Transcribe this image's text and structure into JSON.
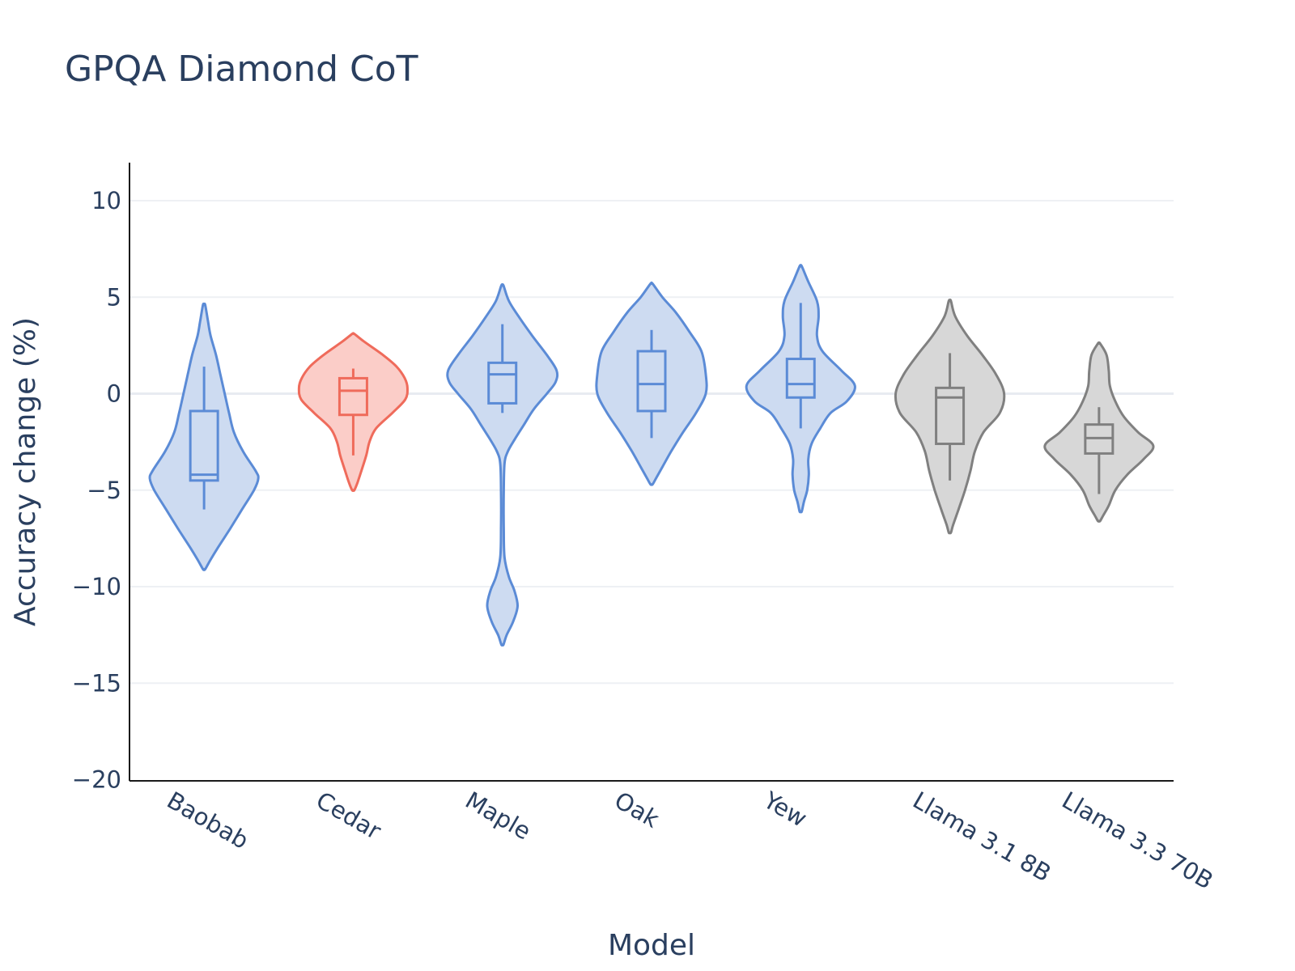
{
  "chart_data": {
    "type": "violin",
    "title": "GPQA Diamond CoT",
    "xlabel": "Model",
    "ylabel": "Accuracy change (%)",
    "ylim": [
      -20,
      12
    ],
    "yticks": [
      10,
      5,
      0,
      -5,
      -10,
      -15,
      -20
    ],
    "ytick_labels": [
      "10",
      "5",
      "0",
      "−5",
      "−10",
      "−15",
      "−20"
    ],
    "grid": true,
    "categories": [
      "Baobab",
      "Cedar",
      "Maple",
      "Oak",
      "Yew",
      "Llama 3.1 8B",
      "Llama 3.3 70B"
    ],
    "series": [
      {
        "name": "Baobab",
        "color": "#5b8bd6",
        "fill": "#cddbf1",
        "range": [
          -9.1,
          4.6
        ],
        "box": {
          "q1": -4.5,
          "median": -4.2,
          "q3": -0.9,
          "whisker_low": -6.0,
          "whisker_high": 1.4
        },
        "density": [
          [
            4.6,
            0.02
          ],
          [
            3.8,
            0.07
          ],
          [
            3.0,
            0.12
          ],
          [
            2.0,
            0.22
          ],
          [
            1.0,
            0.3
          ],
          [
            0.0,
            0.38
          ],
          [
            -1.0,
            0.46
          ],
          [
            -2.0,
            0.55
          ],
          [
            -3.0,
            0.72
          ],
          [
            -4.0,
            0.95
          ],
          [
            -4.4,
            1.0
          ],
          [
            -5.0,
            0.92
          ],
          [
            -6.0,
            0.7
          ],
          [
            -7.0,
            0.48
          ],
          [
            -8.0,
            0.25
          ],
          [
            -8.6,
            0.12
          ],
          [
            -9.1,
            0.02
          ]
        ]
      },
      {
        "name": "Cedar",
        "color": "#ef6b5b",
        "fill": "#fbcdc8",
        "range": [
          -5.0,
          3.1
        ],
        "box": {
          "q1": -1.1,
          "median": 0.15,
          "q3": 0.8,
          "whisker_low": -3.2,
          "whisker_high": 1.3
        },
        "density": [
          [
            3.1,
            0.02
          ],
          [
            2.7,
            0.2
          ],
          [
            2.0,
            0.55
          ],
          [
            1.4,
            0.8
          ],
          [
            0.8,
            0.95
          ],
          [
            0.3,
            1.0
          ],
          [
            -0.3,
            0.96
          ],
          [
            -1.0,
            0.72
          ],
          [
            -1.8,
            0.42
          ],
          [
            -2.5,
            0.3
          ],
          [
            -3.2,
            0.24
          ],
          [
            -4.0,
            0.15
          ],
          [
            -4.6,
            0.08
          ],
          [
            -5.0,
            0.02
          ]
        ]
      },
      {
        "name": "Maple",
        "color": "#5b8bd6",
        "fill": "#cddbf1",
        "range": [
          -13.0,
          5.6
        ],
        "box": {
          "q1": -0.5,
          "median": 1.0,
          "q3": 1.6,
          "whisker_low": -1.0,
          "whisker_high": 3.6
        },
        "density": [
          [
            5.6,
            0.02
          ],
          [
            4.8,
            0.12
          ],
          [
            4.0,
            0.3
          ],
          [
            3.0,
            0.55
          ],
          [
            2.0,
            0.82
          ],
          [
            1.2,
            1.0
          ],
          [
            0.6,
            0.98
          ],
          [
            0.0,
            0.82
          ],
          [
            -0.8,
            0.58
          ],
          [
            -1.6,
            0.4
          ],
          [
            -2.4,
            0.22
          ],
          [
            -3.0,
            0.1
          ],
          [
            -3.6,
            0.04
          ],
          [
            -5.0,
            0.025
          ],
          [
            -7.0,
            0.025
          ],
          [
            -8.5,
            0.04
          ],
          [
            -9.5,
            0.12
          ],
          [
            -10.2,
            0.22
          ],
          [
            -11.0,
            0.28
          ],
          [
            -11.8,
            0.2
          ],
          [
            -12.5,
            0.08
          ],
          [
            -13.0,
            0.02
          ]
        ]
      },
      {
        "name": "Oak",
        "color": "#5b8bd6",
        "fill": "#cddbf1",
        "range": [
          -4.7,
          5.7
        ],
        "box": {
          "q1": -0.9,
          "median": 0.5,
          "q3": 2.2,
          "whisker_low": -2.3,
          "whisker_high": 3.3
        },
        "density": [
          [
            5.7,
            0.02
          ],
          [
            5.0,
            0.2
          ],
          [
            4.2,
            0.45
          ],
          [
            3.2,
            0.7
          ],
          [
            2.2,
            0.92
          ],
          [
            1.0,
            1.0
          ],
          [
            0.0,
            1.0
          ],
          [
            -1.0,
            0.82
          ],
          [
            -2.0,
            0.58
          ],
          [
            -3.0,
            0.36
          ],
          [
            -3.8,
            0.2
          ],
          [
            -4.4,
            0.08
          ],
          [
            -4.7,
            0.02
          ]
        ]
      },
      {
        "name": "Yew",
        "color": "#5b8bd6",
        "fill": "#cddbf1",
        "range": [
          -6.1,
          6.6
        ],
        "box": {
          "q1": -0.2,
          "median": 0.5,
          "q3": 1.8,
          "whisker_low": -1.8,
          "whisker_high": 4.7
        },
        "density": [
          [
            6.6,
            0.02
          ],
          [
            5.8,
            0.14
          ],
          [
            4.8,
            0.3
          ],
          [
            4.0,
            0.33
          ],
          [
            3.0,
            0.3
          ],
          [
            2.2,
            0.4
          ],
          [
            1.2,
            0.75
          ],
          [
            0.4,
            1.0
          ],
          [
            -0.4,
            0.85
          ],
          [
            -1.0,
            0.55
          ],
          [
            -1.8,
            0.36
          ],
          [
            -2.6,
            0.2
          ],
          [
            -3.4,
            0.14
          ],
          [
            -4.2,
            0.15
          ],
          [
            -5.0,
            0.12
          ],
          [
            -5.6,
            0.06
          ],
          [
            -6.1,
            0.02
          ]
        ]
      },
      {
        "name": "Llama 3.1 8B",
        "color": "#808080",
        "fill": "#d7d7d7",
        "range": [
          -7.2,
          4.8
        ],
        "box": {
          "q1": -2.6,
          "median": -0.2,
          "q3": 0.3,
          "whisker_low": -4.5,
          "whisker_high": 2.1
        },
        "density": [
          [
            4.8,
            0.02
          ],
          [
            4.0,
            0.1
          ],
          [
            3.0,
            0.32
          ],
          [
            2.0,
            0.6
          ],
          [
            1.0,
            0.85
          ],
          [
            0.0,
            1.0
          ],
          [
            -1.0,
            0.92
          ],
          [
            -2.0,
            0.62
          ],
          [
            -3.0,
            0.46
          ],
          [
            -4.0,
            0.38
          ],
          [
            -5.0,
            0.28
          ],
          [
            -6.0,
            0.16
          ],
          [
            -6.8,
            0.06
          ],
          [
            -7.2,
            0.02
          ]
        ]
      },
      {
        "name": "Llama 3.3 70B",
        "color": "#808080",
        "fill": "#d7d7d7",
        "range": [
          -6.6,
          2.6
        ],
        "box": {
          "q1": -3.1,
          "median": -2.3,
          "q3": -1.6,
          "whisker_low": -5.2,
          "whisker_high": -0.7
        },
        "density": [
          [
            2.6,
            0.02
          ],
          [
            2.0,
            0.14
          ],
          [
            1.2,
            0.18
          ],
          [
            0.4,
            0.2
          ],
          [
            -0.4,
            0.3
          ],
          [
            -1.2,
            0.46
          ],
          [
            -2.0,
            0.72
          ],
          [
            -2.7,
            1.0
          ],
          [
            -3.4,
            0.82
          ],
          [
            -4.2,
            0.52
          ],
          [
            -5.0,
            0.3
          ],
          [
            -5.8,
            0.18
          ],
          [
            -6.3,
            0.08
          ],
          [
            -6.6,
            0.02
          ]
        ]
      }
    ]
  }
}
